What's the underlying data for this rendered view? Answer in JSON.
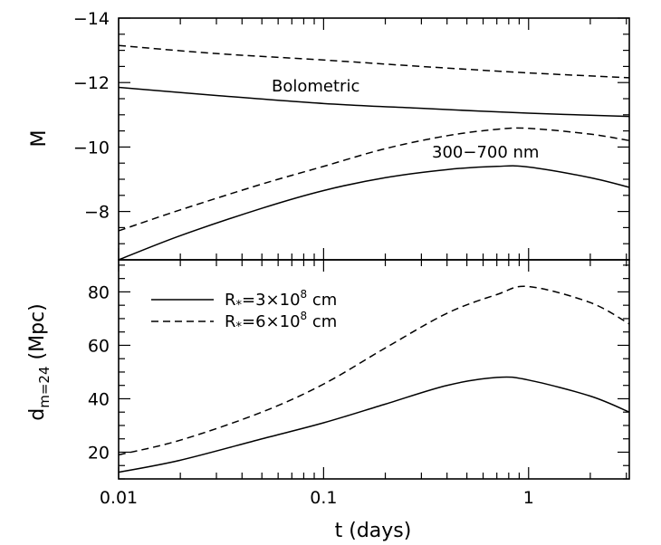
{
  "chart_data": [
    {
      "type": "line",
      "panel": "top",
      "xscale": "log",
      "xlim": [
        0.01,
        3.1
      ],
      "ylim": [
        -6.5,
        -14
      ],
      "y_inverted": true,
      "ylabel": "M",
      "yticks": [
        -8,
        -10,
        -12,
        -14
      ],
      "ytick_labels": [
        "−8",
        "−10",
        "−12",
        "−14"
      ],
      "grid": false,
      "annotations": [
        "Bolometric",
        "300−700 nm"
      ],
      "series": [
        {
          "style": "solid",
          "band": "bolometric",
          "x": [
            0.01,
            0.03,
            0.1,
            0.3,
            1,
            3.1
          ],
          "y": [
            -11.85,
            -11.6,
            -11.35,
            -11.2,
            -11.05,
            -10.95
          ]
        },
        {
          "style": "dashed",
          "band": "bolometric",
          "x": [
            0.01,
            0.03,
            0.1,
            0.3,
            1,
            3.1
          ],
          "y": [
            -13.15,
            -12.9,
            -12.7,
            -12.5,
            -12.3,
            -12.15
          ]
        },
        {
          "style": "solid",
          "band": "300-700 nm",
          "x": [
            0.01,
            0.02,
            0.05,
            0.1,
            0.2,
            0.4,
            0.7,
            1,
            2,
            3.1
          ],
          "y": [
            -6.5,
            -7.25,
            -8.1,
            -8.65,
            -9.05,
            -9.3,
            -9.4,
            -9.38,
            -9.05,
            -8.75
          ]
        },
        {
          "style": "dashed",
          "band": "300-700 nm",
          "x": [
            0.01,
            0.02,
            0.05,
            0.1,
            0.2,
            0.4,
            0.7,
            1,
            2,
            3.1
          ],
          "y": [
            -7.4,
            -8.05,
            -8.85,
            -9.4,
            -9.95,
            -10.35,
            -10.55,
            -10.58,
            -10.4,
            -10.2
          ]
        }
      ]
    },
    {
      "type": "line",
      "panel": "bottom",
      "xscale": "log",
      "xlim": [
        0.01,
        3.1
      ],
      "ylim": [
        10,
        92
      ],
      "xlabel": "t  (days)",
      "xticks": [
        0.01,
        0.1,
        1
      ],
      "xtick_labels": [
        "0.01",
        "0.1",
        "1"
      ],
      "yticks": [
        20,
        40,
        60,
        80
      ],
      "ytick_labels": [
        "20",
        "40",
        "60",
        "80"
      ],
      "ylabel_main": "d",
      "ylabel_sub": "m=24",
      "ylabel_unit": "  (Mpc)",
      "grid": false,
      "legend_position": "top-left",
      "legend": [
        {
          "style": "solid",
          "main": "R",
          "sub": "*",
          "mid": "=3×10",
          "sup": "8",
          "end": " cm"
        },
        {
          "style": "dashed",
          "main": "R",
          "sub": "*",
          "mid": "=6×10",
          "sup": "8",
          "end": " cm"
        }
      ],
      "series": [
        {
          "style": "solid",
          "x": [
            0.01,
            0.02,
            0.05,
            0.1,
            0.2,
            0.4,
            0.7,
            1,
            2,
            3.1
          ],
          "y": [
            12.5,
            17,
            25,
            31,
            38,
            45,
            48,
            47,
            41,
            35
          ]
        },
        {
          "style": "dashed",
          "x": [
            0.01,
            0.02,
            0.05,
            0.1,
            0.2,
            0.4,
            0.7,
            1,
            2,
            3.1
          ],
          "y": [
            19,
            24.5,
            35,
            45.5,
            59,
            72,
            79,
            82,
            76,
            68
          ]
        }
      ]
    }
  ]
}
